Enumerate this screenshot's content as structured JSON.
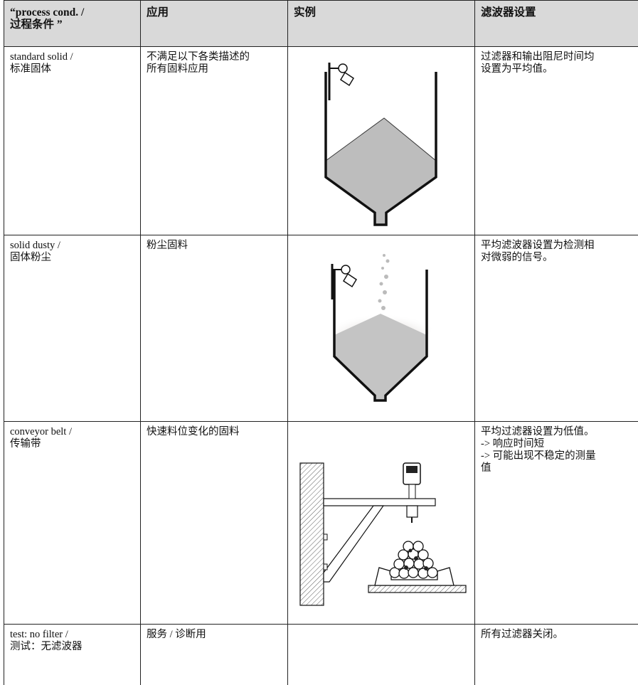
{
  "table": {
    "header": [
      [
        "“process cond. /",
        "过程条件 ”"
      ],
      [
        "应用"
      ],
      [
        "实例"
      ],
      [
        "滤波器设置"
      ]
    ],
    "rows": [
      {
        "process": [
          "standard solid /",
          "标准固体"
        ],
        "application": [
          "不满足以下各类描述的",
          "所有固料应用"
        ],
        "filter": [
          "过滤器和输出阻尼时间均",
          "设置为平均值。"
        ]
      },
      {
        "process": [
          "solid dusty /",
          "固体粉尘"
        ],
        "application": [
          "粉尘固料"
        ],
        "filter": [
          "平均滤波器设置为检测相",
          "对微弱的信号。"
        ]
      },
      {
        "process": [
          "conveyor belt /",
          "传输带"
        ],
        "application": [
          "快速料位变化的固料"
        ],
        "filter": [
          "平均过滤器设置为低值。",
          "-> 响应时间短",
          "-> 可能出现不稳定的测量",
          "值"
        ]
      },
      {
        "process": [
          "test: no filter /",
          "测试：无滤波器"
        ],
        "application": [
          "服务 / 诊断用"
        ],
        "filter": [
          "所有过滤器关闭。"
        ]
      }
    ]
  }
}
